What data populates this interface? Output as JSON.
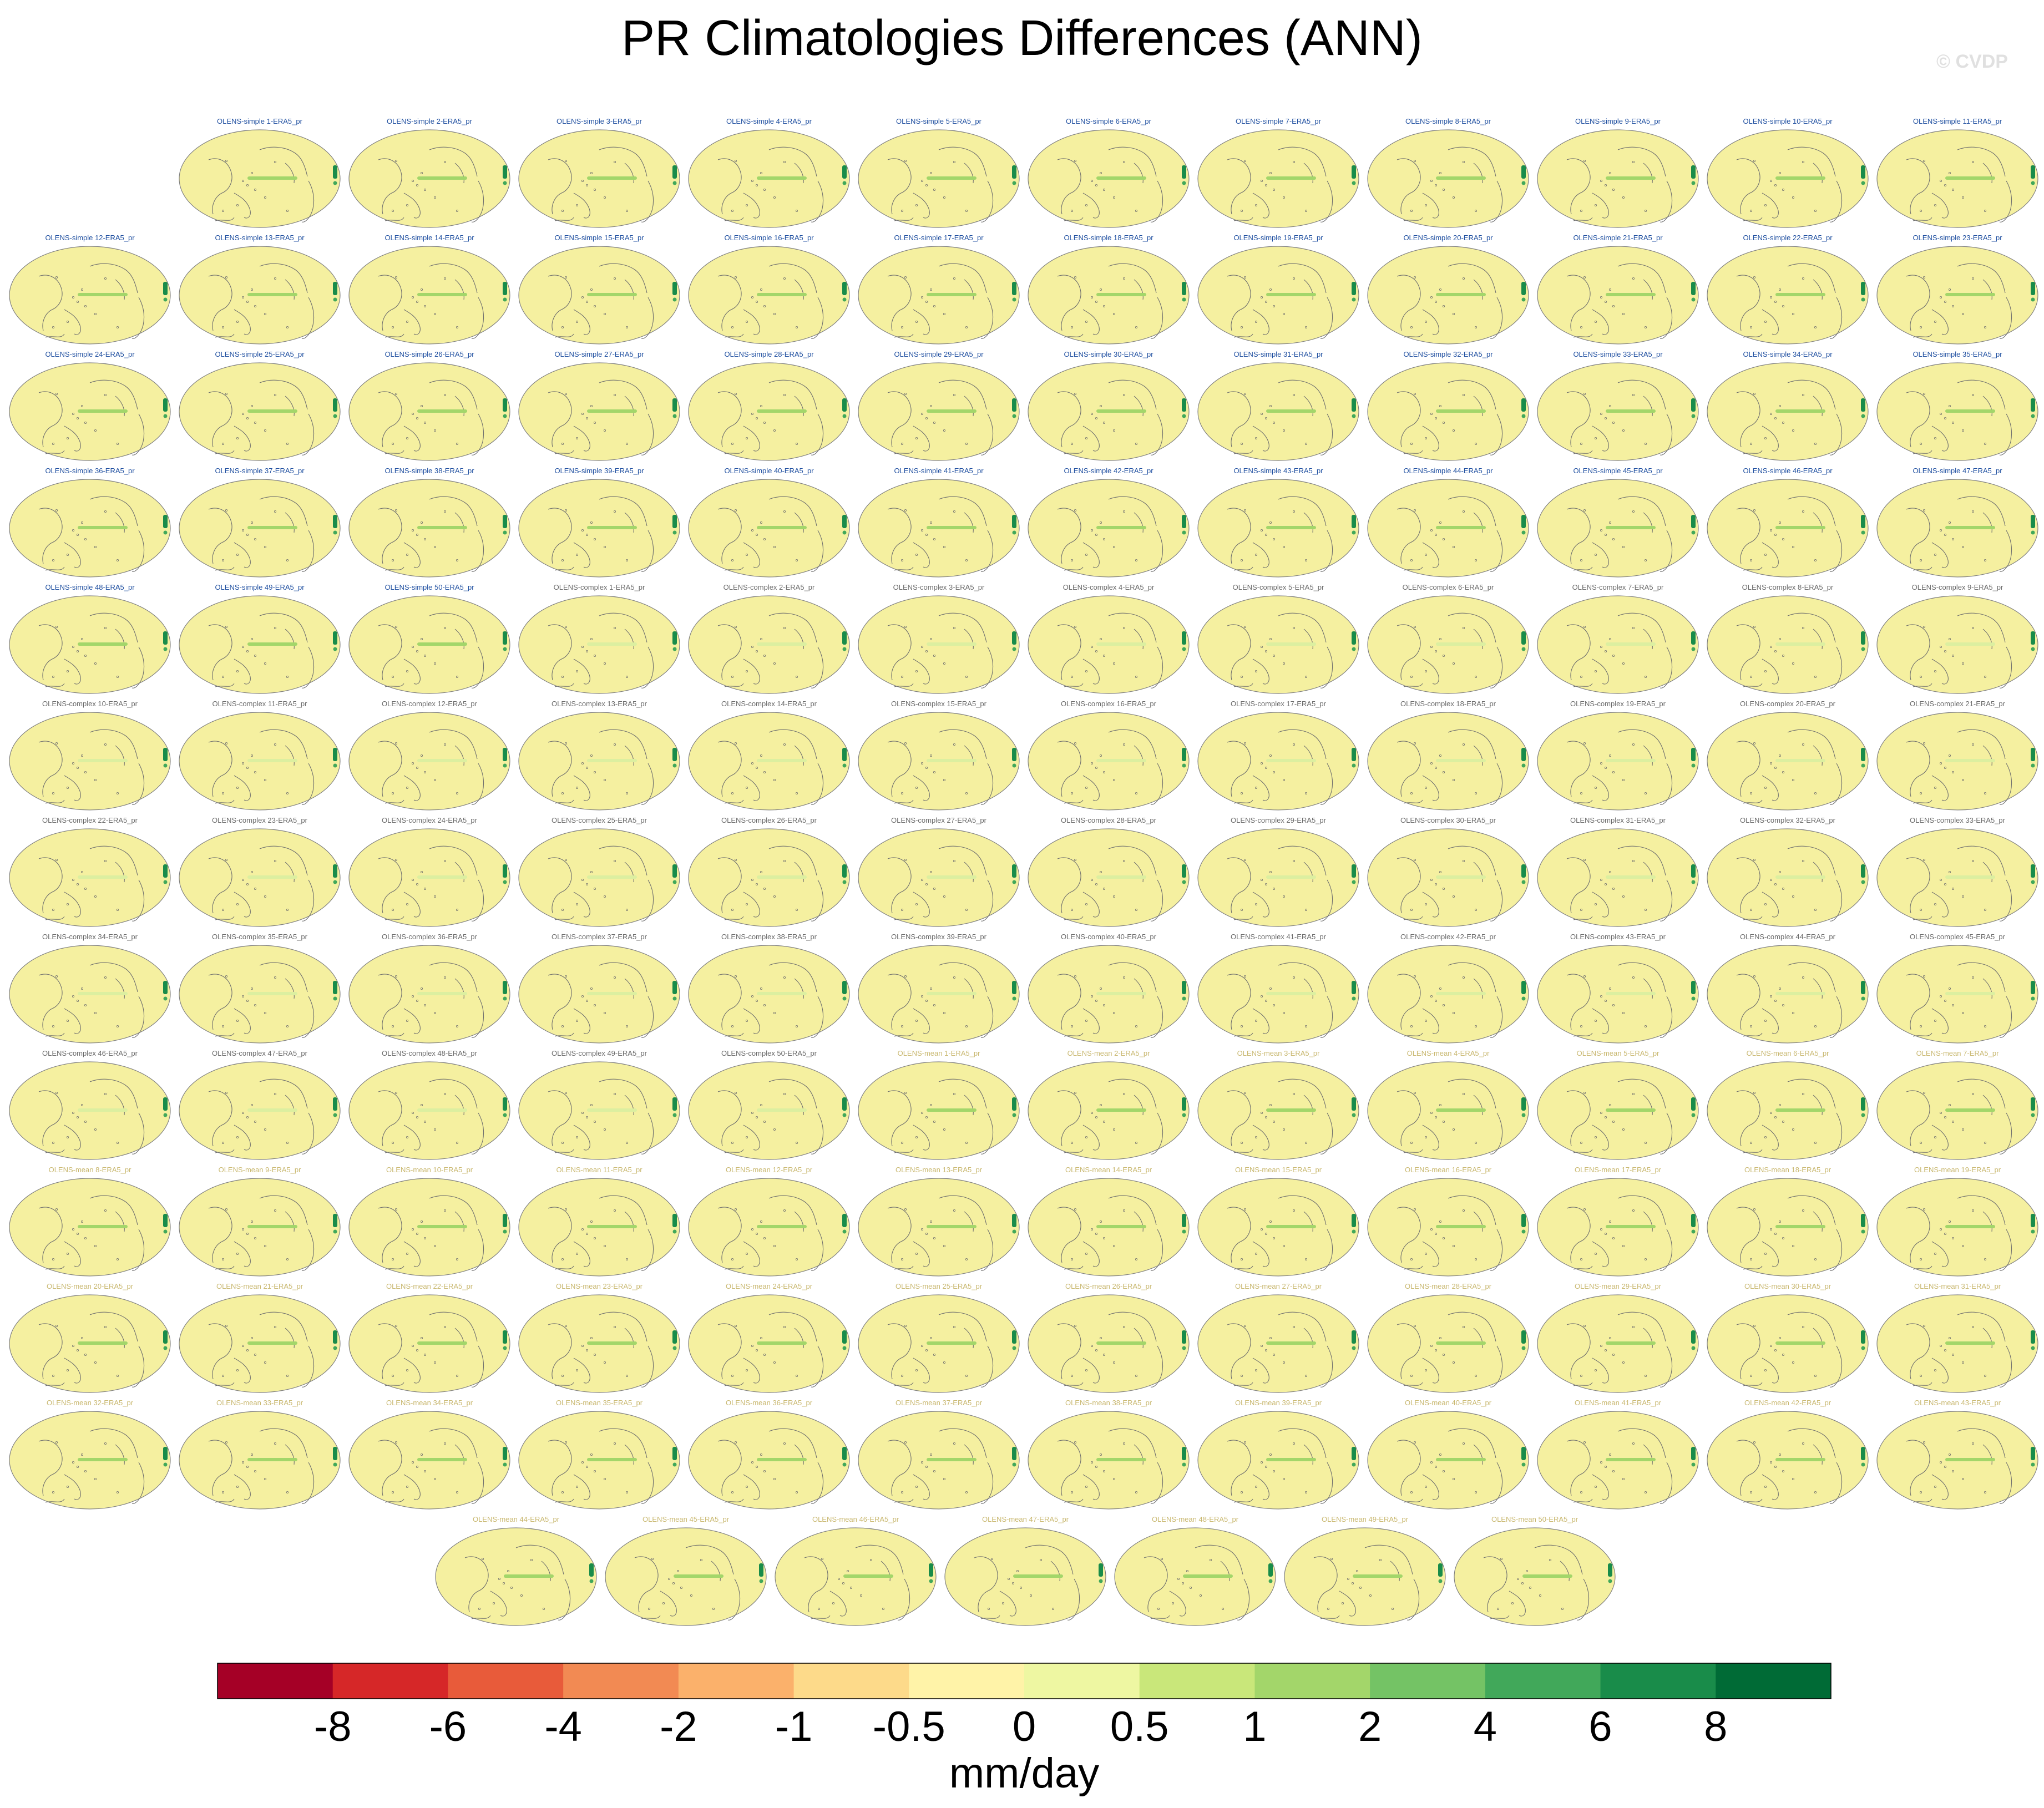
{
  "title": "PR Climatologies Differences (ANN)",
  "watermark": "© CVDP",
  "panel_titles": [
    "OLENS-simple 1-ERA5_pr",
    "OLENS-simple 2-ERA5_pr",
    "OLENS-simple 3-ERA5_pr",
    "OLENS-simple 4-ERA5_pr",
    "OLENS-simple 5-ERA5_pr",
    "OLENS-simple 6-ERA5_pr",
    "OLENS-simple 7-ERA5_pr",
    "OLENS-simple 8-ERA5_pr",
    "OLENS-simple 9-ERA5_pr",
    "OLENS-simple 10-ERA5_pr",
    "OLENS-simple 11-ERA5_pr",
    "OLENS-simple 12-ERA5_pr",
    "OLENS-simple 13-ERA5_pr",
    "OLENS-simple 14-ERA5_pr",
    "OLENS-simple 15-ERA5_pr",
    "OLENS-simple 16-ERA5_pr",
    "OLENS-simple 17-ERA5_pr",
    "OLENS-simple 18-ERA5_pr",
    "OLENS-simple 19-ERA5_pr",
    "OLENS-simple 20-ERA5_pr",
    "OLENS-simple 21-ERA5_pr",
    "OLENS-simple 22-ERA5_pr",
    "OLENS-simple 23-ERA5_pr",
    "OLENS-simple 24-ERA5_pr",
    "OLENS-simple 25-ERA5_pr",
    "OLENS-simple 26-ERA5_pr",
    "OLENS-simple 27-ERA5_pr",
    "OLENS-simple 28-ERA5_pr",
    "OLENS-simple 29-ERA5_pr",
    "OLENS-simple 30-ERA5_pr",
    "OLENS-simple 31-ERA5_pr",
    "OLENS-simple 32-ERA5_pr",
    "OLENS-simple 33-ERA5_pr",
    "OLENS-simple 34-ERA5_pr",
    "OLENS-simple 35-ERA5_pr",
    "OLENS-simple 36-ERA5_pr",
    "OLENS-simple 37-ERA5_pr",
    "OLENS-simple 38-ERA5_pr",
    "OLENS-simple 39-ERA5_pr",
    "OLENS-simple 40-ERA5_pr",
    "OLENS-simple 41-ERA5_pr",
    "OLENS-simple 42-ERA5_pr",
    "OLENS-simple 43-ERA5_pr",
    "OLENS-simple 44-ERA5_pr",
    "OLENS-simple 45-ERA5_pr",
    "OLENS-simple 46-ERA5_pr",
    "OLENS-simple 47-ERA5_pr",
    "OLENS-simple 48-ERA5_pr",
    "OLENS-simple 49-ERA5_pr",
    "OLENS-simple 50-ERA5_pr",
    "OLENS-complex 1-ERA5_pr",
    "OLENS-complex 2-ERA5_pr",
    "OLENS-complex 3-ERA5_pr",
    "OLENS-complex 4-ERA5_pr",
    "OLENS-complex 5-ERA5_pr",
    "OLENS-complex 6-ERA5_pr",
    "OLENS-complex 7-ERA5_pr",
    "OLENS-complex 8-ERA5_pr",
    "OLENS-complex 9-ERA5_pr",
    "OLENS-complex 10-ERA5_pr",
    "OLENS-complex 11-ERA5_pr",
    "OLENS-complex 12-ERA5_pr",
    "OLENS-complex 13-ERA5_pr",
    "OLENS-complex 14-ERA5_pr",
    "OLENS-complex 15-ERA5_pr",
    "OLENS-complex 16-ERA5_pr",
    "OLENS-complex 17-ERA5_pr",
    "OLENS-complex 18-ERA5_pr",
    "OLENS-complex 19-ERA5_pr",
    "OLENS-complex 20-ERA5_pr",
    "OLENS-complex 21-ERA5_pr",
    "OLENS-complex 22-ERA5_pr",
    "OLENS-complex 23-ERA5_pr",
    "OLENS-complex 24-ERA5_pr",
    "OLENS-complex 25-ERA5_pr",
    "OLENS-complex 26-ERA5_pr",
    "OLENS-complex 27-ERA5_pr",
    "OLENS-complex 28-ERA5_pr",
    "OLENS-complex 29-ERA5_pr",
    "OLENS-complex 30-ERA5_pr",
    "OLENS-complex 31-ERA5_pr",
    "OLENS-complex 32-ERA5_pr",
    "OLENS-complex 33-ERA5_pr",
    "OLENS-complex 34-ERA5_pr",
    "OLENS-complex 35-ERA5_pr",
    "OLENS-complex 36-ERA5_pr",
    "OLENS-complex 37-ERA5_pr",
    "OLENS-complex 38-ERA5_pr",
    "OLENS-complex 39-ERA5_pr",
    "OLENS-complex 40-ERA5_pr",
    "OLENS-complex 41-ERA5_pr",
    "OLENS-complex 42-ERA5_pr",
    "OLENS-complex 43-ERA5_pr",
    "OLENS-complex 44-ERA5_pr",
    "OLENS-complex 45-ERA5_pr",
    "OLENS-complex 46-ERA5_pr",
    "OLENS-complex 47-ERA5_pr",
    "OLENS-complex 48-ERA5_pr",
    "OLENS-complex 49-ERA5_pr",
    "OLENS-complex 50-ERA5_pr",
    "OLENS-mean 1-ERA5_pr",
    "OLENS-mean 2-ERA5_pr",
    "OLENS-mean 3-ERA5_pr",
    "OLENS-mean 4-ERA5_pr",
    "OLENS-mean 5-ERA5_pr",
    "OLENS-mean 6-ERA5_pr",
    "OLENS-mean 7-ERA5_pr",
    "OLENS-mean 8-ERA5_pr",
    "OLENS-mean 9-ERA5_pr",
    "OLENS-mean 10-ERA5_pr",
    "OLENS-mean 11-ERA5_pr",
    "OLENS-mean 12-ERA5_pr",
    "OLENS-mean 13-ERA5_pr",
    "OLENS-mean 14-ERA5_pr",
    "OLENS-mean 15-ERA5_pr",
    "OLENS-mean 16-ERA5_pr",
    "OLENS-mean 17-ERA5_pr",
    "OLENS-mean 18-ERA5_pr",
    "OLENS-mean 19-ERA5_pr",
    "OLENS-mean 20-ERA5_pr",
    "OLENS-mean 21-ERA5_pr",
    "OLENS-mean 22-ERA5_pr",
    "OLENS-mean 23-ERA5_pr",
    "OLENS-mean 24-ERA5_pr",
    "OLENS-mean 25-ERA5_pr",
    "OLENS-mean 26-ERA5_pr",
    "OLENS-mean 27-ERA5_pr",
    "OLENS-mean 28-ERA5_pr",
    "OLENS-mean 29-ERA5_pr",
    "OLENS-mean 30-ERA5_pr",
    "OLENS-mean 31-ERA5_pr",
    "OLENS-mean 32-ERA5_pr",
    "OLENS-mean 33-ERA5_pr",
    "OLENS-mean 34-ERA5_pr",
    "OLENS-mean 35-ERA5_pr",
    "OLENS-mean 36-ERA5_pr",
    "OLENS-mean 37-ERA5_pr",
    "OLENS-mean 38-ERA5_pr",
    "OLENS-mean 39-ERA5_pr",
    "OLENS-mean 40-ERA5_pr",
    "OLENS-mean 41-ERA5_pr",
    "OLENS-mean 42-ERA5_pr",
    "OLENS-mean 43-ERA5_pr",
    "OLENS-mean 44-ERA5_pr",
    "OLENS-mean 45-ERA5_pr",
    "OLENS-mean 46-ERA5_pr",
    "OLENS-mean 47-ERA5_pr",
    "OLENS-mean 48-ERA5_pr",
    "OLENS-mean 49-ERA5_pr",
    "OLENS-mean 50-ERA5_pr"
  ],
  "colors": {
    "map_fill": "#f5f0a0",
    "map_outline": "#808080",
    "coast": "#6e6e6e",
    "simple_title": "#1f4fa0",
    "complex_title": "#6a6a6a",
    "mean_title": "#c9b870"
  },
  "chart_data": {
    "type": "heatmap",
    "title": "PR Climatologies Differences (ANN)",
    "units": "mm/day",
    "projection": "global map, Pacific-centered",
    "colorbar": {
      "labels": [
        "-8",
        "-6",
        "-4",
        "-2",
        "-1",
        "-0.5",
        "0",
        "0.5",
        "1",
        "2",
        "4",
        "6",
        "8"
      ],
      "levels": [
        -8,
        -6,
        -4,
        -2,
        -1,
        -0.5,
        0,
        0.5,
        1,
        2,
        4,
        6,
        8
      ],
      "colors": [
        "#a50026",
        "#d62728",
        "#e85b3a",
        "#f28a53",
        "#fbb16b",
        "#fdda8a",
        "#fff3a8",
        "#eef7a2",
        "#c9e77a",
        "#a3d66a",
        "#74c365",
        "#41a85a",
        "#198c4a",
        "#006b36"
      ],
      "label": "mm/day"
    },
    "panels": {
      "count": 150,
      "groups": [
        {
          "name": "OLENS-simple",
          "members": 50
        },
        {
          "name": "OLENS-complex",
          "members": 50
        },
        {
          "name": "OLENS-mean",
          "members": 50
        }
      ]
    }
  }
}
